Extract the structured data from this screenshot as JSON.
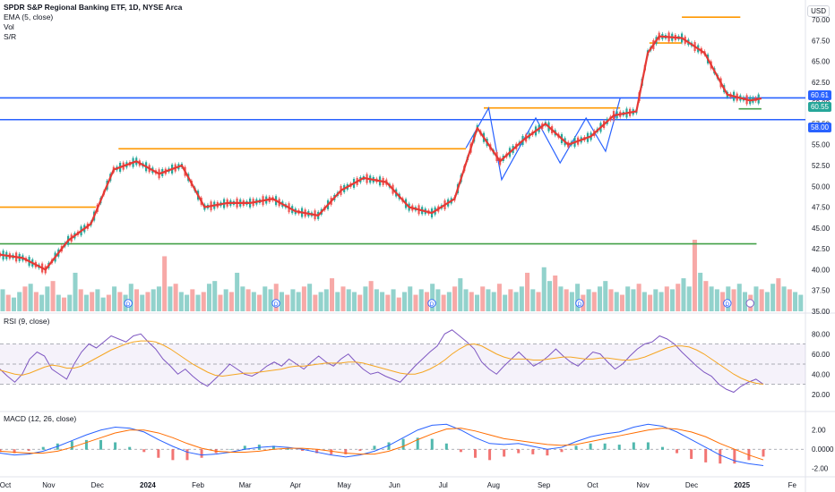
{
  "header": {
    "symbol": "SPDR S&P Regional Banking ETF, 1D, NYSE Arca",
    "ema_label": "EMA (5, close)",
    "vol_label": "Vol",
    "sr_label": "S/R",
    "currency": "USD"
  },
  "rsi_label": "RSI (9, close)",
  "macd_label": "MACD (12, 26, close)",
  "price_badges": {
    "last": "60.61",
    "ema": "60.55",
    "support": "58.00"
  },
  "colors": {
    "up": "#26a69a",
    "down": "#ef5350",
    "ema": "#e53935",
    "sr_orange": "#ff9800",
    "sr_blue": "#2962ff",
    "sr_green": "#43a047",
    "pattern": "#2962ff",
    "rsi": "#7e57c2",
    "rsi_ma": "#f5a623",
    "macd": "#2962ff",
    "signal": "#ff6d00"
  },
  "chart_data": [
    {
      "type": "line",
      "title": "SPDR S&P Regional Banking ETF, 1D, NYSE Arca",
      "x_ticks": [
        "Oct",
        "Nov",
        "Dec",
        "2024",
        "Feb",
        "Mar",
        "Apr",
        "May",
        "Jun",
        "Jul",
        "Aug",
        "Sep",
        "Oct",
        "Nov",
        "Dec",
        "2025",
        "Fe"
      ],
      "y_ticks": [
        "35.00",
        "37.50",
        "40.00",
        "42.50",
        "45.00",
        "47.50",
        "50.00",
        "52.50",
        "55.00",
        "57.50",
        "60.00",
        "62.50",
        "65.00",
        "67.50",
        "70.00"
      ],
      "ylim": [
        35,
        71.5
      ],
      "series": [
        {
          "name": "EMA (5, close)",
          "x": [
            "2023-10-02",
            "2023-10-16",
            "2023-10-30",
            "2023-11-13",
            "2023-11-27",
            "2023-12-11",
            "2023-12-25",
            "2024-01-08",
            "2024-01-22",
            "2024-02-05",
            "2024-02-19",
            "2024-03-04",
            "2024-03-18",
            "2024-04-01",
            "2024-04-15",
            "2024-04-29",
            "2024-05-13",
            "2024-05-27",
            "2024-06-10",
            "2024-06-24",
            "2024-07-08",
            "2024-07-22",
            "2024-08-05",
            "2024-08-19",
            "2024-09-02",
            "2024-09-16",
            "2024-09-30",
            "2024-10-14",
            "2024-10-28",
            "2024-11-04",
            "2024-11-11",
            "2024-11-25",
            "2024-12-09",
            "2024-12-23",
            "2025-01-06",
            "2025-01-13"
          ],
          "values": [
            41.8,
            41.4,
            40.0,
            43.5,
            45.5,
            52.0,
            53.0,
            51.5,
            52.5,
            47.5,
            48.0,
            48.0,
            48.5,
            47.0,
            46.5,
            49.5,
            51.0,
            50.5,
            47.5,
            46.8,
            48.5,
            57.0,
            53.0,
            55.5,
            57.5,
            55.0,
            56.0,
            58.5,
            59.0,
            66.0,
            68.0,
            67.8,
            66.0,
            61.0,
            60.3,
            60.55
          ]
        }
      ],
      "levels": [
        {
          "y": 47.5,
          "x_start": "2023-10-02",
          "x_end": "2023-11-30",
          "color": "orange"
        },
        {
          "y": 54.5,
          "x_start": "2023-12-14",
          "x_end": "2024-07-15",
          "color": "orange"
        },
        {
          "y": 59.4,
          "x_start": "2024-07-26",
          "x_end": "2024-10-18",
          "color": "orange"
        },
        {
          "y": 70.3,
          "x_start": "2024-11-25",
          "x_end": "2024-12-31",
          "color": "orange"
        },
        {
          "y": 67.2,
          "x_start": "2024-11-05",
          "x_end": "2024-11-25",
          "color": "orange"
        },
        {
          "y": 60.61,
          "x_start": "2023-10-02",
          "x_end": "2025-02-10",
          "color": "blue"
        },
        {
          "y": 58.0,
          "x_start": "2023-10-02",
          "x_end": "2025-02-10",
          "color": "blue"
        },
        {
          "y": 43.1,
          "x_start": "2023-10-02",
          "x_end": "2025-01-10",
          "color": "green"
        },
        {
          "y": 59.3,
          "x_start": "2024-12-30",
          "x_end": "2025-01-13",
          "color": "green"
        }
      ],
      "pattern": [
        {
          "x": "2024-07-15",
          "y": 54.6
        },
        {
          "x": "2024-07-29",
          "y": 59.4
        },
        {
          "x": "2024-08-06",
          "y": 50.8
        },
        {
          "x": "2024-08-27",
          "y": 58.2
        },
        {
          "x": "2024-09-11",
          "y": 52.8
        },
        {
          "x": "2024-09-27",
          "y": 58.2
        },
        {
          "x": "2024-10-09",
          "y": 54.2
        },
        {
          "x": "2024-10-18",
          "y": 60.6
        }
      ],
      "dividend_markers": [
        "D",
        "D",
        "D",
        "D",
        "D"
      ],
      "volume": [
        8,
        6,
        5,
        7,
        9,
        10,
        7,
        6,
        9,
        11,
        6,
        5,
        6,
        14,
        8,
        6,
        7,
        8,
        5,
        6,
        9,
        7,
        6,
        10,
        8,
        6,
        7,
        8,
        9,
        20,
        9,
        10,
        7,
        6,
        8,
        6,
        7,
        10,
        11,
        6,
        8,
        7,
        14,
        9,
        8,
        7,
        6,
        9,
        8,
        10,
        7,
        6,
        8,
        7,
        9,
        10,
        6,
        7,
        8,
        12,
        7,
        9,
        8,
        7,
        6,
        9,
        11,
        8,
        7,
        6,
        8,
        5,
        7,
        9,
        6,
        8,
        7,
        10,
        8,
        6,
        7,
        9,
        12,
        8,
        7,
        6,
        9,
        8,
        7,
        10,
        6,
        8,
        7,
        9,
        14,
        8,
        7,
        16,
        11,
        13,
        9,
        8,
        7,
        10,
        6,
        8,
        7,
        9,
        11,
        8,
        7,
        6,
        9,
        8,
        10,
        7,
        6,
        8,
        7,
        9,
        8,
        10,
        12,
        9,
        26,
        14,
        11,
        9,
        8,
        7,
        9,
        8,
        10,
        7,
        6,
        9,
        8,
        7,
        10,
        12,
        9,
        8,
        7,
        6
      ]
    },
    {
      "type": "line",
      "title": "RSI (9, close)",
      "y_ticks": [
        "20.00",
        "40.00",
        "60.00",
        "80.00"
      ],
      "ylim": [
        10,
        90
      ],
      "band": [
        30,
        70
      ],
      "series": [
        {
          "name": "RSI (9, close)",
          "values": [
            45,
            38,
            32,
            40,
            55,
            62,
            58,
            45,
            40,
            35,
            50,
            62,
            70,
            66,
            72,
            78,
            75,
            72,
            78,
            80,
            72,
            65,
            55,
            48,
            40,
            45,
            38,
            32,
            28,
            35,
            42,
            50,
            45,
            40,
            38,
            42,
            48,
            52,
            48,
            55,
            50,
            45,
            52,
            58,
            52,
            48,
            55,
            60,
            52,
            45,
            40,
            42,
            38,
            35,
            32,
            40,
            48,
            55,
            62,
            68,
            80,
            84,
            78,
            72,
            65,
            52,
            45,
            40,
            48,
            55,
            62,
            55,
            48,
            52,
            58,
            65,
            58,
            52,
            48,
            55,
            62,
            60,
            52,
            45,
            50,
            58,
            65,
            70,
            72,
            78,
            75,
            70,
            62,
            55,
            48,
            42,
            38,
            30,
            25,
            22,
            28,
            32,
            35,
            30
          ]
        },
        {
          "name": "RSI MA",
          "values": [
            44,
            42,
            40,
            39,
            41,
            44,
            47,
            49,
            48,
            46,
            46,
            48,
            52,
            56,
            60,
            64,
            67,
            70,
            72,
            73,
            73,
            72,
            69,
            65,
            60,
            55,
            50,
            46,
            42,
            39,
            38,
            39,
            40,
            41,
            41,
            42,
            43,
            44,
            45,
            47,
            48,
            48,
            49,
            50,
            51,
            51,
            51,
            52,
            52,
            51,
            49,
            47,
            45,
            43,
            41,
            40,
            40,
            42,
            45,
            49,
            54,
            60,
            65,
            69,
            70,
            68,
            64,
            60,
            57,
            55,
            55,
            55,
            54,
            54,
            55,
            56,
            57,
            57,
            56,
            55,
            55,
            56,
            56,
            55,
            54,
            54,
            55,
            57,
            60,
            63,
            66,
            68,
            68,
            67,
            64,
            60,
            55,
            50,
            45,
            40,
            36,
            33,
            31,
            30
          ]
        }
      ]
    },
    {
      "type": "bar",
      "title": "MACD (12, 26, close)",
      "y_ticks": [
        "2.00",
        "0.0000",
        "-2.00"
      ],
      "ylim": [
        -2.4,
        3.0
      ],
      "series": [
        {
          "name": "MACD",
          "values": [
            -0.4,
            -0.6,
            -0.5,
            -0.2,
            0.3,
            0.9,
            1.5,
            2.0,
            2.3,
            2.2,
            1.8,
            1.0,
            0.3,
            -0.3,
            -0.6,
            -0.5,
            -0.3,
            0.0,
            0.2,
            0.3,
            0.2,
            0.0,
            -0.3,
            -0.6,
            -0.8,
            -0.6,
            -0.2,
            0.4,
            1.2,
            2.0,
            2.5,
            2.6,
            2.0,
            1.2,
            0.6,
            0.5,
            0.6,
            0.3,
            0.0,
            0.2,
            0.8,
            1.3,
            1.6,
            1.8,
            2.3,
            2.6,
            2.4,
            1.8,
            1.0,
            0.2,
            -0.6,
            -1.2,
            -1.5,
            -1.7
          ]
        },
        {
          "name": "Signal",
          "values": [
            -0.2,
            -0.3,
            -0.4,
            -0.4,
            -0.2,
            0.2,
            0.7,
            1.2,
            1.7,
            2.0,
            2.0,
            1.7,
            1.2,
            0.6,
            0.1,
            -0.2,
            -0.3,
            -0.3,
            -0.2,
            0.0,
            0.1,
            0.1,
            0.0,
            -0.2,
            -0.4,
            -0.5,
            -0.5,
            -0.2,
            0.3,
            1.0,
            1.6,
            2.1,
            2.2,
            1.9,
            1.5,
            1.1,
            0.9,
            0.7,
            0.5,
            0.4,
            0.5,
            0.8,
            1.1,
            1.4,
            1.7,
            2.0,
            2.2,
            2.1,
            1.8,
            1.3,
            0.6,
            0.0,
            -0.6,
            -1.1
          ]
        }
      ]
    }
  ]
}
